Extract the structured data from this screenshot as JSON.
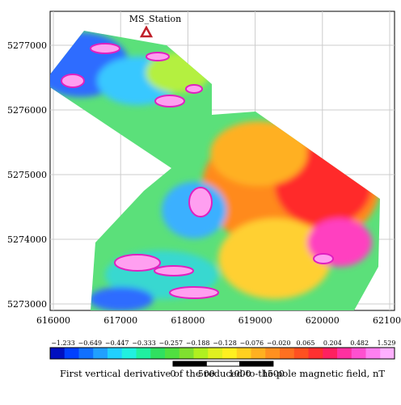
{
  "map": {
    "station_label": "MS_Station",
    "x_ticks": [
      "616000",
      "617000",
      "618000",
      "619000",
      "620000",
      "621000"
    ],
    "y_ticks": [
      "5277000",
      "5276000",
      "5275000",
      "5274000",
      "5273000"
    ],
    "colorbar_ticks": [
      "−1.233",
      "−0.649",
      "−0.447",
      "−0.333",
      "−0.257",
      "−0.188",
      "−0.128",
      "−0.076",
      "−0.020",
      "0.065",
      "0.204",
      "0.482",
      "1.529"
    ],
    "colorbar_label": "First vertical derivative of the reduced-to-the-pole magnetic field, nT",
    "scale_ticks": [
      "0",
      "500",
      "1000",
      "1500"
    ]
  }
}
